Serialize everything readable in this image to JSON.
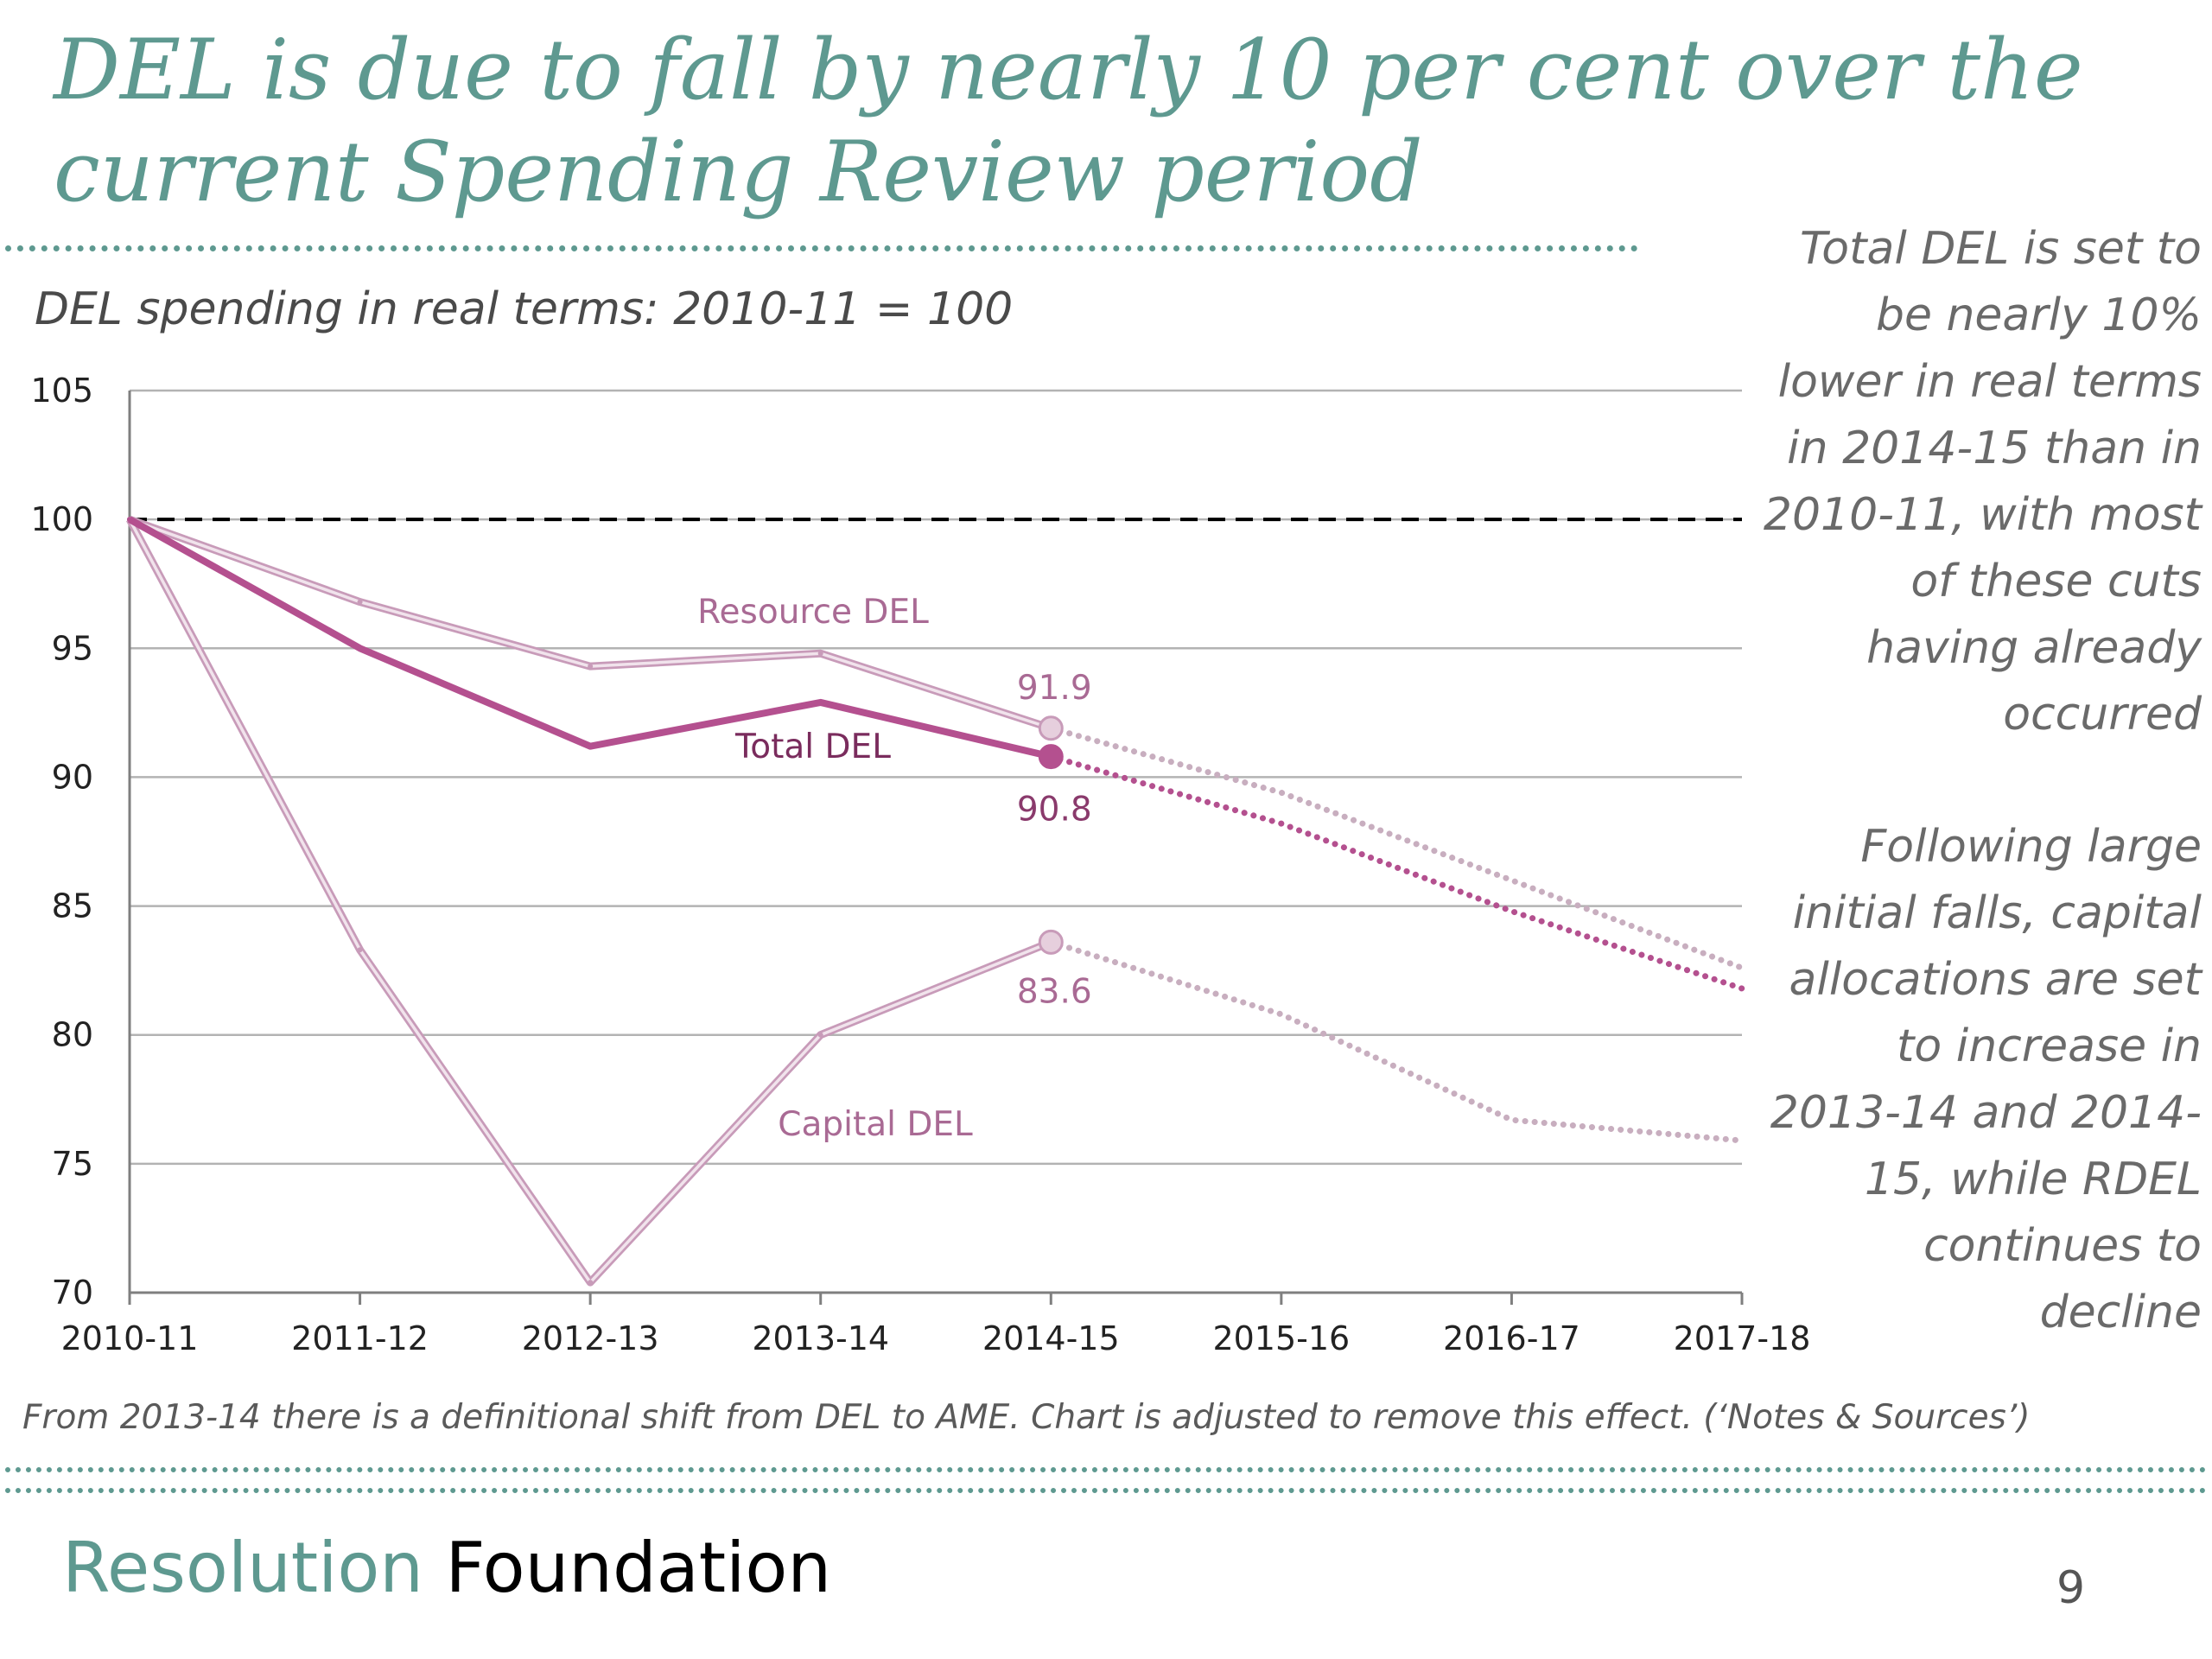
{
  "slide": {
    "title": "DEL is due to fall by nearly 10 per cent over the current Spending Review period",
    "page_number": "9",
    "footnote": "From 2013-14 there is a definitional shift from DEL to AME. Chart is adjusted to remove this effect. (‘Notes & Sources’)",
    "brand": {
      "part1": "Resolution",
      "part2": "Foundation"
    },
    "commentary": [
      "Total DEL is set to be nearly 10% lower in real terms in 2014-15 than in 2010-11, with most of these cuts having already occurred",
      "Following large initial falls, capital allocations are set to increase in 2013-14 and 2014-15, while RDEL continues to decline"
    ]
  },
  "chart_data": {
    "type": "line",
    "subtitle": "DEL spending in real terms: 2010-11 = 100",
    "categories": [
      "2010-11",
      "2011-12",
      "2012-13",
      "2013-14",
      "2014-15",
      "2015-16",
      "2016-17",
      "2017-18"
    ],
    "ylim": [
      70,
      105
    ],
    "yticks": [
      70,
      75,
      80,
      85,
      90,
      95,
      100,
      105
    ],
    "grid": true,
    "reference_line": {
      "value": 100,
      "style": "dashed",
      "color": "#000000"
    },
    "projection_from": "2014-15",
    "series": [
      {
        "name": "Resource DEL",
        "color": "#d8b4cc",
        "values": [
          100,
          96.8,
          94.3,
          94.8,
          91.9,
          89.4,
          86.0,
          82.6
        ],
        "end_label": "91.9"
      },
      {
        "name": "Total DEL",
        "color": "#b4508f",
        "values": [
          100,
          95.0,
          91.2,
          92.9,
          90.8,
          88.2,
          84.8,
          81.8
        ],
        "end_label": "90.8"
      },
      {
        "name": "Capital DEL",
        "color": "#d8b4cc",
        "values": [
          100,
          83.3,
          70.4,
          80.0,
          83.6,
          80.8,
          76.7,
          75.9
        ],
        "end_label": "83.6"
      }
    ]
  }
}
